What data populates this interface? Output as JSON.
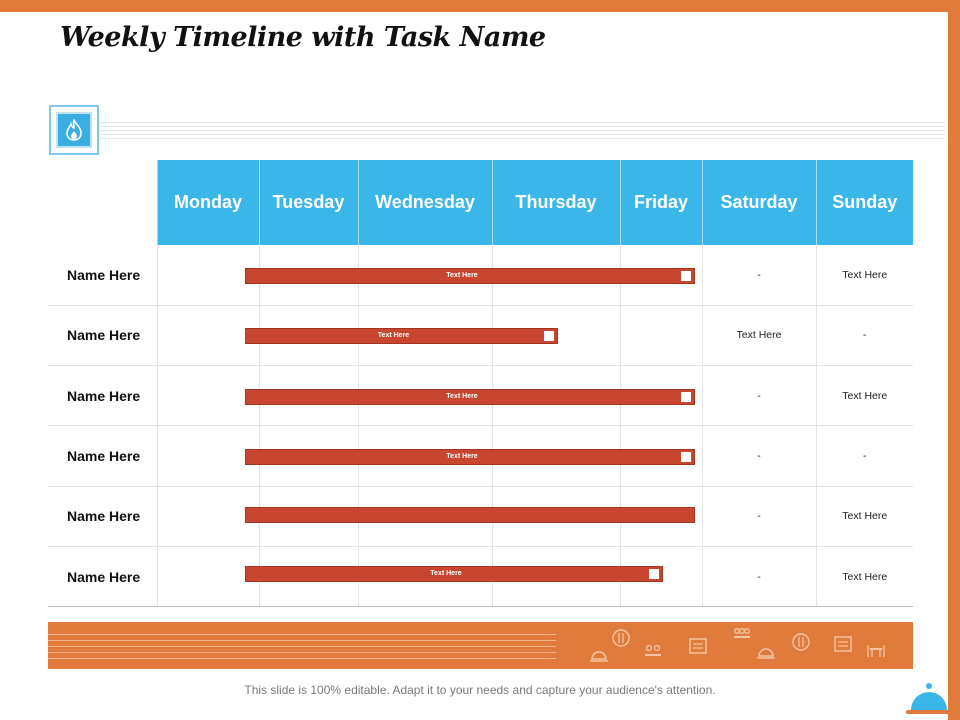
{
  "title": "Weekly Timeline with Task Name",
  "days": [
    "Monday",
    "Tuesday",
    "Wednesday",
    "Thursday",
    "Friday",
    "Saturday",
    "Sunday"
  ],
  "rows": [
    {
      "name": "Name Here",
      "bar_label": "Text Here",
      "bar_span": "Tuesday–Friday",
      "saturday": "-",
      "sunday": "Text Here"
    },
    {
      "name": "Name Here",
      "bar_label": "Text Here",
      "bar_span": "Tuesday–Thursday",
      "saturday": "Text Here",
      "sunday": "-"
    },
    {
      "name": "Name Here",
      "bar_label": "Text Here",
      "bar_span": "Tuesday–Friday",
      "saturday": "-",
      "sunday": "Text Here"
    },
    {
      "name": "Name Here",
      "bar_label": "Text Here",
      "bar_span": "Tuesday–Friday",
      "saturday": "-",
      "sunday": "-"
    },
    {
      "name": "Name Here",
      "bar_label": "",
      "bar_span": "Tuesday–Friday",
      "saturday": "-",
      "sunday": "Text Here"
    },
    {
      "name": "Name Here",
      "bar_label": "Text Here",
      "bar_span": "Tuesday–Friday",
      "saturday": "-",
      "sunday": "Text Here"
    }
  ],
  "footnote": "This slide is 100% editable. Adapt it to your needs and capture your audience's attention.",
  "icons": {
    "header": "fire-icon",
    "band": [
      "plate-cutlery-icon",
      "cloche-icon",
      "diners-icon",
      "menu-board-icon",
      "group-icon",
      "cloche-icon",
      "plate-cutlery-icon",
      "menu-board-icon",
      "table-chairs-icon"
    ],
    "corner": "cloche-icon"
  },
  "colors": {
    "accent_orange": "#e07b3c",
    "header_blue": "#3bb6e8",
    "bar_red": "#c8452f"
  }
}
